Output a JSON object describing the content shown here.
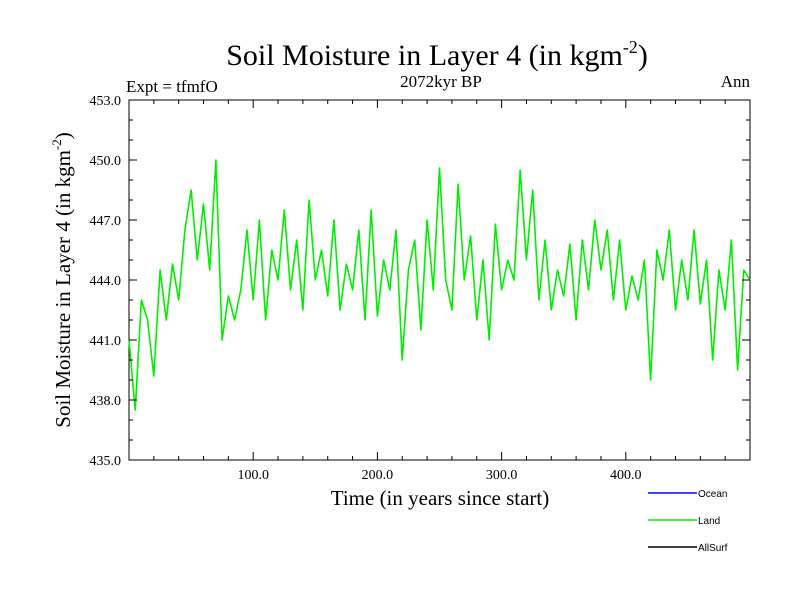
{
  "chart_data": {
    "type": "line",
    "title": "Soil Moisture in Layer 4 (in kgm",
    "title_superscript": "-2",
    "title_close": ")",
    "subtitle": "2072kyr BP",
    "left_label": "Expt = tfmfO",
    "right_label": "Ann",
    "xlabel": "Time (in years since start)",
    "ylabel": "Soil Moisture in Layer 4 (in kgm",
    "ylabel_superscript": "-2",
    "ylabel_close": ")",
    "xlim": [
      0,
      500
    ],
    "ylim": [
      435,
      453
    ],
    "xticks": [
      100,
      200,
      300,
      400
    ],
    "xtick_labels": [
      "100.0",
      "200.0",
      "300.0",
      "400.0"
    ],
    "yticks": [
      435,
      438,
      441,
      444,
      447,
      450,
      453
    ],
    "ytick_labels": [
      "435.0",
      "438.0",
      "441.0",
      "444.0",
      "447.0",
      "450.0",
      "453.0"
    ],
    "legend": [
      {
        "name": "Ocean",
        "color": "#0000ff"
      },
      {
        "name": "Land",
        "color": "#00ee00"
      },
      {
        "name": "AllSurf",
        "color": "#000000"
      }
    ],
    "series": [
      {
        "name": "Land",
        "color": "#00ee00",
        "x": [
          0,
          5,
          10,
          15,
          20,
          25,
          30,
          35,
          40,
          45,
          50,
          55,
          60,
          65,
          70,
          75,
          80,
          85,
          90,
          95,
          100,
          105,
          110,
          115,
          120,
          125,
          130,
          135,
          140,
          145,
          150,
          155,
          160,
          165,
          170,
          175,
          180,
          185,
          190,
          195,
          200,
          205,
          210,
          215,
          220,
          225,
          230,
          235,
          240,
          245,
          250,
          255,
          260,
          265,
          270,
          275,
          280,
          285,
          290,
          295,
          300,
          305,
          310,
          315,
          320,
          325,
          330,
          335,
          340,
          345,
          350,
          355,
          360,
          365,
          370,
          375,
          380,
          385,
          390,
          395,
          400,
          405,
          410,
          415,
          420,
          425,
          430,
          435,
          440,
          445,
          450,
          455,
          460,
          465,
          470,
          475,
          480,
          485,
          490,
          495,
          500
        ],
        "values": [
          441.0,
          437.5,
          443.0,
          442.0,
          439.2,
          444.5,
          442.0,
          444.8,
          443.0,
          446.5,
          448.5,
          445.0,
          447.8,
          444.5,
          450.0,
          441.0,
          443.2,
          442.0,
          443.5,
          446.5,
          443.0,
          447.0,
          442.0,
          445.5,
          444.0,
          447.5,
          443.5,
          446.0,
          442.5,
          448.0,
          444.0,
          445.5,
          443.2,
          447.0,
          442.5,
          444.8,
          443.5,
          446.5,
          442.0,
          447.5,
          442.2,
          445.0,
          443.5,
          446.5,
          440.0,
          444.5,
          446.0,
          441.5,
          447.0,
          443.5,
          449.6,
          444.0,
          442.5,
          448.8,
          444.0,
          446.2,
          442.0,
          445.0,
          441.0,
          446.8,
          443.5,
          445.0,
          444.0,
          449.5,
          445.0,
          448.5,
          443.0,
          446.0,
          442.5,
          444.5,
          443.2,
          445.8,
          442.0,
          446.0,
          443.5,
          447.0,
          444.5,
          446.5,
          443.0,
          446.0,
          442.5,
          444.2,
          443.0,
          445.0,
          439.0,
          445.5,
          444.0,
          446.5,
          442.5,
          445.0,
          443.0,
          446.5,
          442.8,
          445.0,
          440.0,
          444.5,
          442.5,
          446.0,
          439.5,
          444.5,
          444.0
        ]
      }
    ]
  }
}
